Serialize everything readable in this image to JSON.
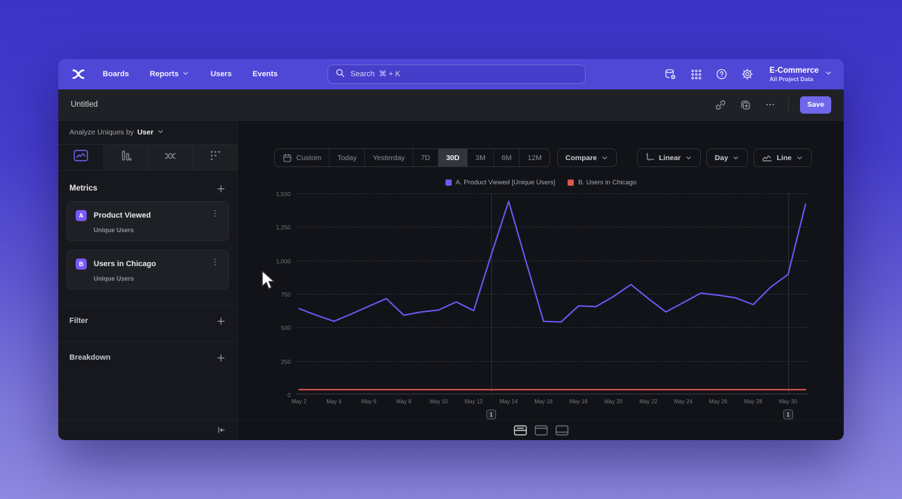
{
  "navbar": {
    "items": [
      {
        "label": "Boards",
        "chevron": false
      },
      {
        "label": "Reports",
        "chevron": true
      },
      {
        "label": "Users",
        "chevron": false
      },
      {
        "label": "Events",
        "chevron": false
      }
    ],
    "search_placeholder": "Search  ⌘ + K",
    "right_icons": [
      "database-settings-icon",
      "apps-grid-icon",
      "help-icon",
      "settings-gear-icon"
    ],
    "project_name": "E-Commerce",
    "project_subtitle": "All Project Data"
  },
  "toolbar": {
    "title": "Untitled",
    "icons": [
      "link-icon",
      "duplicate-icon",
      "more-icon"
    ],
    "save_label": "Save"
  },
  "sidebar": {
    "analyze_prefix": "Analyze Uniques by",
    "analyze_value": "User",
    "viz_tabs": [
      "insights-line",
      "bar",
      "flows",
      "retention"
    ],
    "selected_viz_tab": "insights-line",
    "metrics_header": "Metrics",
    "metrics": [
      {
        "badge": "A",
        "name": "Product Viewed",
        "subtitle": "Unique Users"
      },
      {
        "badge": "B",
        "name": "Users in Chicago",
        "subtitle": "Unique Users"
      }
    ],
    "filter_label": "Filter",
    "breakdown_label": "Breakdown"
  },
  "controls": {
    "date_ranges": [
      "Custom",
      "Today",
      "Yesterday",
      "7D",
      "30D",
      "3M",
      "6M",
      "12M"
    ],
    "selected_range": "30D",
    "compare_label": "Compare",
    "scale_label": "Linear",
    "interval_label": "Day",
    "chart_type_label": "Line"
  },
  "theme": {
    "accent": "#6f67ea",
    "metric_badge": "#7a58f8",
    "series_a": "#6a5af5",
    "series_b": "#e0574d"
  },
  "chart_data": {
    "type": "line",
    "title": "",
    "xlabel": "",
    "ylabel": "",
    "ylim": [
      0,
      1500
    ],
    "y_ticks": [
      "1,500",
      "1,250",
      "1,000",
      "750",
      "500",
      "250",
      "0"
    ],
    "grid": "dashed-horizontal",
    "legend_position": "top-center",
    "x": [
      "May 2",
      "May 3",
      "May 4",
      "May 5",
      "May 6",
      "May 7",
      "May 8",
      "May 9",
      "May 10",
      "May 11",
      "May 12",
      "May 13",
      "May 14",
      "May 15",
      "May 16",
      "May 17",
      "May 18",
      "May 19",
      "May 20",
      "May 21",
      "May 22",
      "May 23",
      "May 24",
      "May 25",
      "May 26",
      "May 27",
      "May 28",
      "May 29",
      "May 30",
      "May 31"
    ],
    "x_ticks": [
      "May 2",
      "May 4",
      "May 6",
      "May 8",
      "May 10",
      "May 12",
      "May 14",
      "May 16",
      "May 18",
      "May 20",
      "May 22",
      "May 24",
      "May 26",
      "May 28",
      "May 30"
    ],
    "series": [
      {
        "name": "A. Product Viewed [Unique Users]",
        "color": "#6a5af5",
        "values": [
          640,
          590,
          545,
          600,
          658,
          715,
          590,
          615,
          630,
          690,
          625,
          1040,
          1440,
          990,
          545,
          540,
          660,
          655,
          730,
          820,
          715,
          615,
          685,
          755,
          740,
          720,
          670,
          800,
          895,
          1420
        ]
      },
      {
        "name": "B. Users in Chicago",
        "color": "#e0574d",
        "values": [
          35,
          35,
          35,
          35,
          35,
          35,
          35,
          35,
          35,
          35,
          35,
          35,
          35,
          35,
          35,
          35,
          35,
          35,
          35,
          35,
          35,
          35,
          35,
          35,
          35,
          35,
          35,
          35,
          35,
          35
        ]
      }
    ],
    "annotations": [
      {
        "label": "1",
        "date": "May 13"
      },
      {
        "label": "1",
        "date": "May 30"
      }
    ]
  },
  "footer": {
    "view_toggles": [
      "split-view",
      "chart-only-view",
      "table-only-view"
    ],
    "selected_view": "split-view"
  }
}
